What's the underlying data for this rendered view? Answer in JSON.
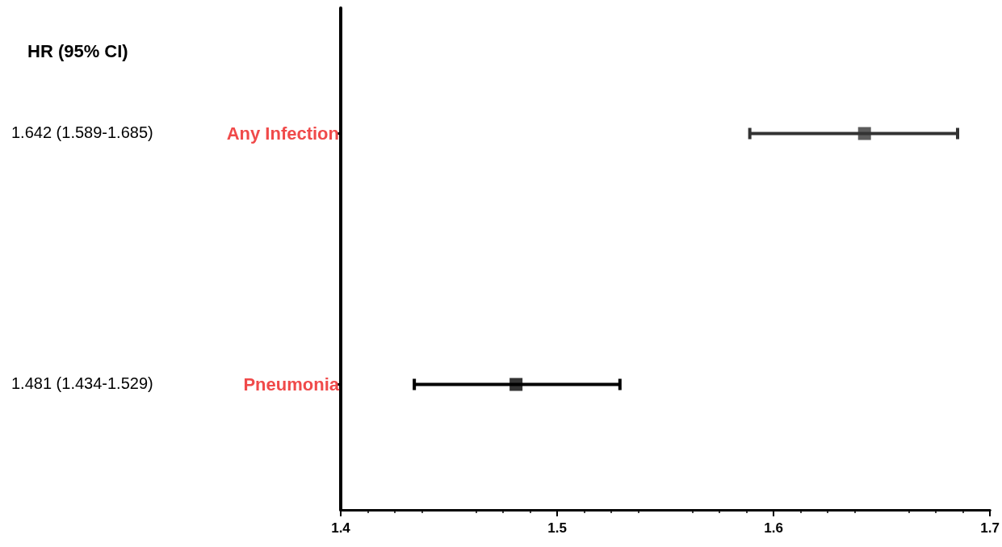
{
  "chart_data": {
    "type": "scatter",
    "orientation": "horizontal",
    "categories": [
      "Any Infection",
      "Pneumonia"
    ],
    "values": [
      1.642,
      1.481
    ],
    "errors": [
      [
        1.589,
        1.685
      ],
      [
        1.434,
        1.529
      ]
    ],
    "colors": [
      "#333333",
      "#000000"
    ],
    "marker": "square",
    "xlim": [
      1.4,
      1.7
    ],
    "xticks": [
      1.4,
      1.5,
      1.6,
      1.7
    ],
    "grid": false,
    "annotations": [
      "HR (95% CI)",
      "1.642 (1.589-1.685)",
      "1.481 (1.434-1.529)"
    ]
  }
}
